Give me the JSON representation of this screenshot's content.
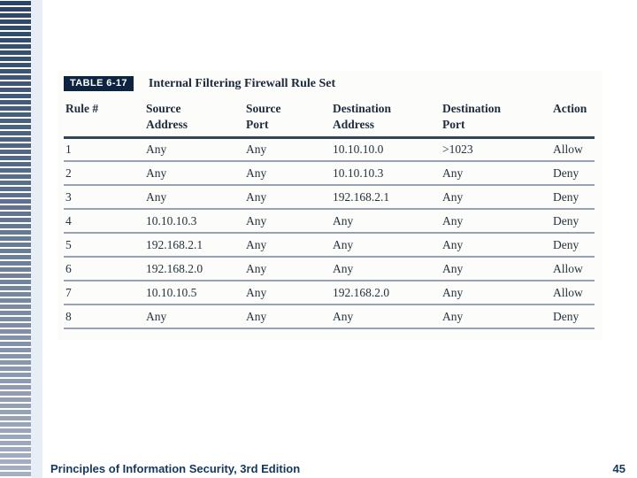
{
  "slide": {
    "footer": "Principles of Information Security, 3rd Edition",
    "page_number": "45"
  },
  "table": {
    "label": "TABLE 6-17",
    "title": "Internal Filtering Firewall Rule Set",
    "columns": [
      "Rule #",
      "Source\nAddress",
      "Source\nPort",
      "Destination\nAddress",
      "Destination\nPort",
      "Action"
    ],
    "rows": [
      [
        "1",
        "Any",
        "Any",
        "10.10.10.0",
        ">1023",
        "Allow"
      ],
      [
        "2",
        "Any",
        "Any",
        "10.10.10.3",
        "Any",
        "Deny"
      ],
      [
        "3",
        "Any",
        "Any",
        "192.168.2.1",
        "Any",
        "Deny"
      ],
      [
        "4",
        "10.10.10.3",
        "Any",
        "Any",
        "Any",
        "Deny"
      ],
      [
        "5",
        "192.168.2.1",
        "Any",
        "Any",
        "Any",
        "Deny"
      ],
      [
        "6",
        "192.168.2.0",
        "Any",
        "Any",
        "Any",
        "Allow"
      ],
      [
        "7",
        "10.10.10.5",
        "Any",
        "192.168.2.0",
        "Any",
        "Allow"
      ],
      [
        "8",
        "Any",
        "Any",
        "Any",
        "Any",
        "Deny"
      ]
    ]
  },
  "colors": {
    "accent": "#0d2440",
    "text-navy": "#24323f",
    "header-navy": "#1e2c3e",
    "footer-navy": "#15375f",
    "heavy-line": "#33435c",
    "light-line": "#97a2b5",
    "fig-bg": "#fcfcfa",
    "strip-bg": "#e8eef5",
    "sidebar-top": "#2a4567",
    "sidebar-bottom": "#a4b0c2"
  }
}
